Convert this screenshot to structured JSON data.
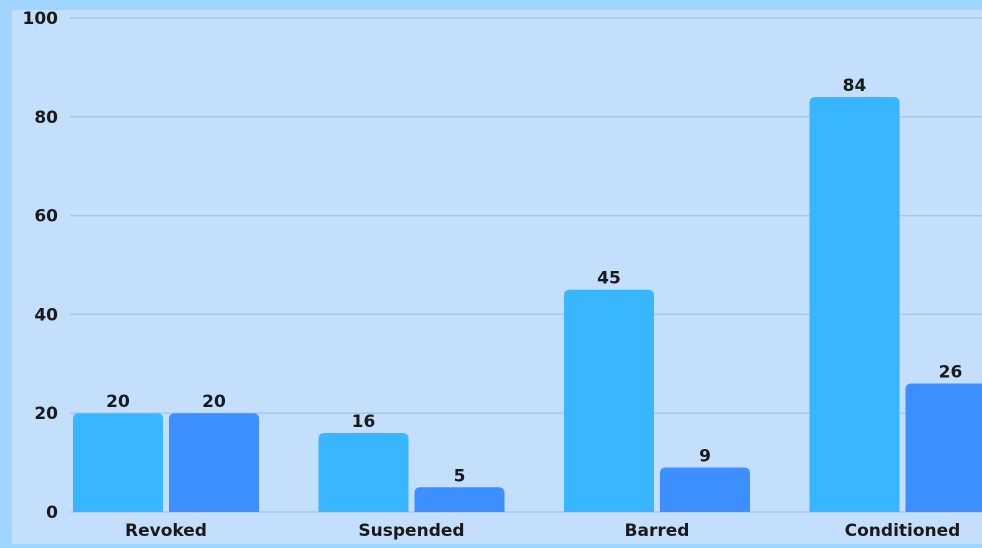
{
  "chart_data": {
    "type": "bar",
    "categories": [
      "Revoked",
      "Suspended",
      "Barred",
      "Conditioned"
    ],
    "series": [
      {
        "values": [
          20,
          16,
          45,
          84
        ],
        "color": "#38b6ff"
      },
      {
        "values": [
          20,
          5,
          9,
          26
        ],
        "color": "#3d8eff"
      }
    ],
    "ylim": [
      0,
      100
    ],
    "yticks": [
      0,
      20,
      40,
      60,
      80,
      100
    ],
    "grid": true,
    "legend": "none",
    "plot_background": "#c3dffb",
    "gridline_color": "#a9c7ea"
  }
}
